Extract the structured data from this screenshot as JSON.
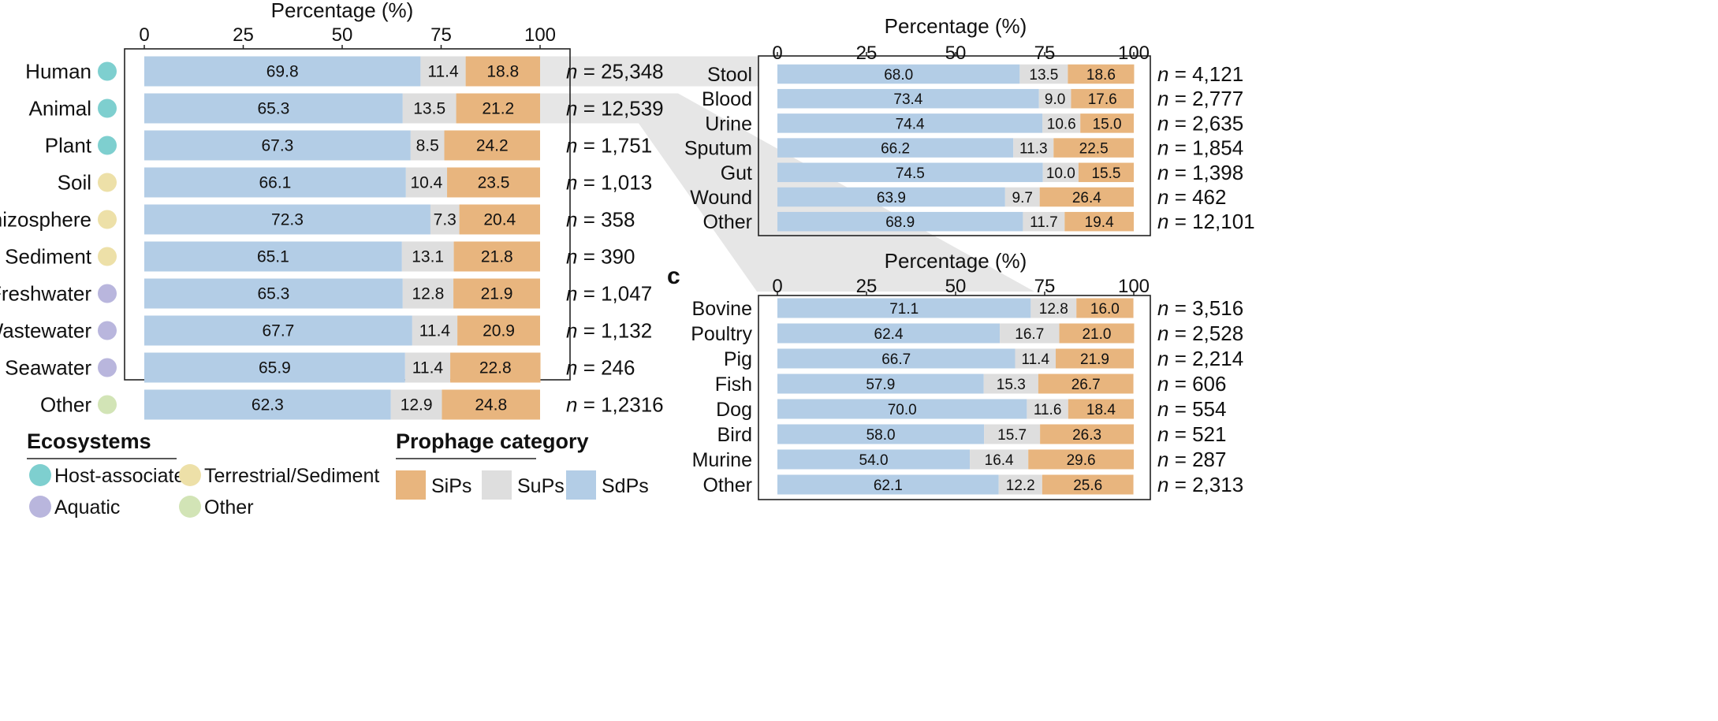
{
  "colors": {
    "SdPs": "#b3cde6",
    "SuPs": "#dedede",
    "SiPs": "#e8b57e",
    "connector": "#e6e6e6",
    "host": "#7ecfcf",
    "terrestrial": "#ede0a8",
    "aquatic": "#b9b6dd",
    "other": "#d2e4b6"
  },
  "legend": {
    "ecosystems_title": "Ecosystems",
    "ecosystems": [
      {
        "label": "Host-associated",
        "color_key": "host"
      },
      {
        "label": "Terrestrial/Sediment",
        "color_key": "terrestrial"
      },
      {
        "label": "Aquatic",
        "color_key": "aquatic"
      },
      {
        "label": "Other",
        "color_key": "other"
      }
    ],
    "prophage_title": "Prophage category",
    "prophage": [
      {
        "label": "SiPs",
        "color_key": "SiPs"
      },
      {
        "label": "SuPs",
        "color_key": "SuPs"
      },
      {
        "label": "SdPs",
        "color_key": "SdPs"
      }
    ]
  },
  "chart_data": [
    {
      "id": "a",
      "type": "bar",
      "orientation": "horizontal-stacked",
      "xlabel": "Percentage (%)",
      "xlim": [
        0,
        100
      ],
      "xticks": [
        "0",
        "25",
        "50",
        "75",
        "100"
      ],
      "series_names": [
        "SdPs",
        "SuPs",
        "SiPs"
      ],
      "rows": [
        {
          "category": "Human",
          "eco": "host",
          "values": [
            69.8,
            11.4,
            18.8
          ],
          "labels": [
            "69.8",
            "11.4",
            "18.8"
          ],
          "n_prefix": "n",
          "n_text": " = 25,348"
        },
        {
          "category": "Animal",
          "eco": "host",
          "values": [
            65.3,
            13.5,
            21.2
          ],
          "labels": [
            "65.3",
            "13.5",
            "21.2"
          ],
          "n_prefix": "n",
          "n_text": " = 12,539"
        },
        {
          "category": "Plant",
          "eco": "host",
          "values": [
            67.3,
            8.5,
            24.2
          ],
          "labels": [
            "67.3",
            "8.5",
            "24.2"
          ],
          "n_prefix": "n",
          "n_text": " = 1,751"
        },
        {
          "category": "Soil",
          "eco": "terrestrial",
          "values": [
            66.1,
            10.4,
            23.5
          ],
          "labels": [
            "66.1",
            "10.4",
            "23.5"
          ],
          "n_prefix": "n",
          "n_text": " = 1,013"
        },
        {
          "category": "Rhizosphere",
          "eco": "terrestrial",
          "values": [
            72.3,
            7.3,
            20.4
          ],
          "labels": [
            "72.3",
            "7.3",
            "20.4"
          ],
          "n_prefix": "n",
          "n_text": " = 358"
        },
        {
          "category": "Sediment",
          "eco": "terrestrial",
          "values": [
            65.1,
            13.1,
            21.8
          ],
          "labels": [
            "65.1",
            "13.1",
            "21.8"
          ],
          "n_prefix": "n",
          "n_text": " = 390"
        },
        {
          "category": "Freshwater",
          "eco": "aquatic",
          "values": [
            65.3,
            12.8,
            21.9
          ],
          "labels": [
            "65.3",
            "12.8",
            "21.9"
          ],
          "n_prefix": "n",
          "n_text": " = 1,047"
        },
        {
          "category": "Wastewater",
          "eco": "aquatic",
          "values": [
            67.7,
            11.4,
            20.9
          ],
          "labels": [
            "67.7",
            "11.4",
            "20.9"
          ],
          "n_prefix": "n",
          "n_text": " = 1,132"
        },
        {
          "category": "Seawater",
          "eco": "aquatic",
          "values": [
            65.9,
            11.4,
            22.8
          ],
          "labels": [
            "65.9",
            "11.4",
            "22.8"
          ],
          "n_prefix": "n",
          "n_text": " = 246"
        },
        {
          "category": "Other",
          "eco": "other",
          "values": [
            62.3,
            12.9,
            24.8
          ],
          "labels": [
            "62.3",
            "12.9",
            "24.8"
          ],
          "n_prefix": "n",
          "n_text": " = 1,2316"
        }
      ]
    },
    {
      "id": "b",
      "type": "bar",
      "orientation": "horizontal-stacked",
      "xlabel": "Percentage (%)",
      "xlim": [
        0,
        100
      ],
      "xticks": [
        "0",
        "25",
        "50",
        "75",
        "100"
      ],
      "series_names": [
        "SdPs",
        "SuPs",
        "SiPs"
      ],
      "rows": [
        {
          "category": "Stool",
          "values": [
            68.0,
            13.5,
            18.6
          ],
          "labels": [
            "68.0",
            "13.5",
            "18.6"
          ],
          "n_prefix": "n",
          "n_text": " = 4,121"
        },
        {
          "category": "Blood",
          "values": [
            73.4,
            9.0,
            17.6
          ],
          "labels": [
            "73.4",
            "9.0",
            "17.6"
          ],
          "n_prefix": "n",
          "n_text": " = 2,777"
        },
        {
          "category": "Urine",
          "values": [
            74.4,
            10.6,
            15.0
          ],
          "labels": [
            "74.4",
            "10.6",
            "15.0"
          ],
          "n_prefix": "n",
          "n_text": " = 2,635"
        },
        {
          "category": "Sputum",
          "values": [
            66.2,
            11.3,
            22.5
          ],
          "labels": [
            "66.2",
            "11.3",
            "22.5"
          ],
          "n_prefix": "n",
          "n_text": " = 1,854"
        },
        {
          "category": "Gut",
          "values": [
            74.5,
            10.0,
            15.5
          ],
          "labels": [
            "74.5",
            "10.0",
            "15.5"
          ],
          "n_prefix": "n",
          "n_text": " = 1,398"
        },
        {
          "category": "Wound",
          "values": [
            63.9,
            9.7,
            26.4
          ],
          "labels": [
            "63.9",
            "9.7",
            "26.4"
          ],
          "n_prefix": "n",
          "n_text": " = 462"
        },
        {
          "category": "Other",
          "values": [
            68.9,
            11.7,
            19.4
          ],
          "labels": [
            "68.9",
            "11.7",
            "19.4"
          ],
          "n_prefix": "n",
          "n_text": " = 12,101"
        }
      ]
    },
    {
      "id": "c",
      "panel_label": "c",
      "type": "bar",
      "orientation": "horizontal-stacked",
      "xlabel": "Percentage (%)",
      "xlim": [
        0,
        100
      ],
      "xticks": [
        "0",
        "25",
        "50",
        "75",
        "100"
      ],
      "series_names": [
        "SdPs",
        "SuPs",
        "SiPs"
      ],
      "rows": [
        {
          "category": "Bovine",
          "values": [
            71.1,
            12.8,
            16.0
          ],
          "labels": [
            "71.1",
            "12.8",
            "16.0"
          ],
          "n_prefix": "n",
          "n_text": " = 3,516"
        },
        {
          "category": "Poultry",
          "values": [
            62.4,
            16.7,
            21.0
          ],
          "labels": [
            "62.4",
            "16.7",
            "21.0"
          ],
          "n_prefix": "n",
          "n_text": " = 2,528"
        },
        {
          "category": "Pig",
          "values": [
            66.7,
            11.4,
            21.9
          ],
          "labels": [
            "66.7",
            "11.4",
            "21.9"
          ],
          "n_prefix": "n",
          "n_text": " = 2,214"
        },
        {
          "category": "Fish",
          "values": [
            57.9,
            15.3,
            26.7
          ],
          "labels": [
            "57.9",
            "15.3",
            "26.7"
          ],
          "n_prefix": "n",
          "n_text": " = 606"
        },
        {
          "category": "Dog",
          "values": [
            70.0,
            11.6,
            18.4
          ],
          "labels": [
            "70.0",
            "11.6",
            "18.4"
          ],
          "n_prefix": "n",
          "n_text": " = 554"
        },
        {
          "category": "Bird",
          "values": [
            58.0,
            15.7,
            26.3
          ],
          "labels": [
            "58.0",
            "15.7",
            "26.3"
          ],
          "n_prefix": "n",
          "n_text": " = 521"
        },
        {
          "category": "Murine",
          "values": [
            54.0,
            16.4,
            29.6
          ],
          "labels": [
            "54.0",
            "16.4",
            "29.6"
          ],
          "n_prefix": "n",
          "n_text": " = 287"
        },
        {
          "category": "Other",
          "values": [
            62.1,
            12.2,
            25.6
          ],
          "labels": [
            "62.1",
            "12.2",
            "25.6"
          ],
          "n_prefix": "n",
          "n_text": " = 2,313"
        }
      ]
    }
  ]
}
